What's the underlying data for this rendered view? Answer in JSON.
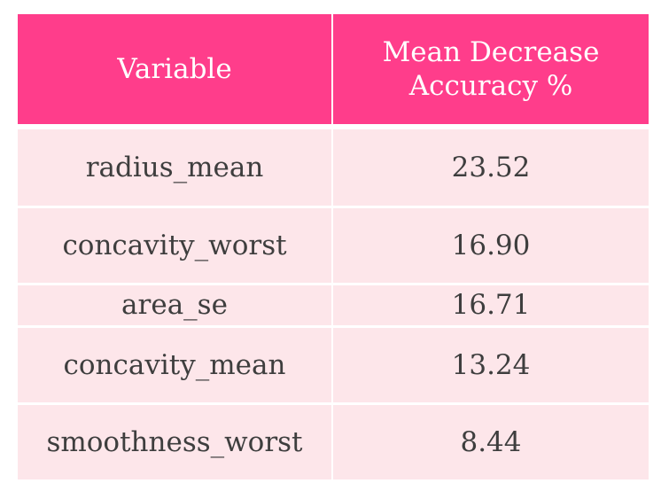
{
  "table": {
    "headers": [
      "Variable",
      "Mean Decrease Accuracy %"
    ],
    "header_line1": "Mean Decrease",
    "header_line2": "Accuracy %",
    "rows": [
      {
        "variable": "radius_mean",
        "value": "23.52"
      },
      {
        "variable": "concavity_worst",
        "value": "16.90"
      },
      {
        "variable": "area_se",
        "value": "16.71"
      },
      {
        "variable": "concavity_mean",
        "value": "13.24"
      },
      {
        "variable": "smoothness_worst",
        "value": "8.44"
      }
    ]
  },
  "colors": {
    "header_bg": "#ff3d8b",
    "header_text": "#ffffff",
    "row_bg": "#fde6ea",
    "cell_text": "#3e3e3e"
  }
}
